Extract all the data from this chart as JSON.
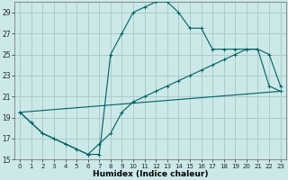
{
  "xlabel": "Humidex (Indice chaleur)",
  "bg_color": "#cce8e8",
  "grid_color": "#aacccc",
  "line_color": "#006060",
  "xlim": [
    -0.5,
    23.5
  ],
  "ylim": [
    15,
    30
  ],
  "xticks": [
    0,
    1,
    2,
    3,
    4,
    5,
    6,
    7,
    8,
    9,
    10,
    11,
    12,
    13,
    14,
    15,
    16,
    17,
    18,
    19,
    20,
    21,
    22,
    23
  ],
  "yticks": [
    15,
    17,
    19,
    21,
    23,
    25,
    27,
    29
  ],
  "curve1_x": [
    0,
    1,
    2,
    3,
    4,
    5,
    6,
    7,
    8,
    9,
    10,
    11,
    12,
    13,
    14,
    15,
    16,
    17,
    18,
    19,
    20,
    21,
    22,
    23
  ],
  "curve1_y": [
    19.5,
    18.5,
    17.5,
    17.0,
    16.5,
    16.0,
    15.5,
    15.5,
    25.0,
    27.0,
    29.0,
    29.5,
    30.0,
    30.0,
    29.0,
    27.5,
    27.5,
    25.5,
    25.5,
    25.5,
    25.5,
    25.5,
    25.0,
    22.0
  ],
  "curve2_x": [
    0,
    1,
    2,
    3,
    4,
    5,
    6,
    7,
    8,
    9,
    10,
    11,
    12,
    13,
    14,
    15,
    16,
    17,
    18,
    19,
    20,
    21,
    22,
    23
  ],
  "curve2_y": [
    19.5,
    18.5,
    17.5,
    17.0,
    16.5,
    16.0,
    15.5,
    16.5,
    17.5,
    19.5,
    20.5,
    21.0,
    21.5,
    22.0,
    22.5,
    23.0,
    23.5,
    24.0,
    24.5,
    25.0,
    25.5,
    25.5,
    22.0,
    21.5
  ],
  "curve3_x": [
    0,
    23
  ],
  "curve3_y": [
    19.5,
    21.5
  ]
}
